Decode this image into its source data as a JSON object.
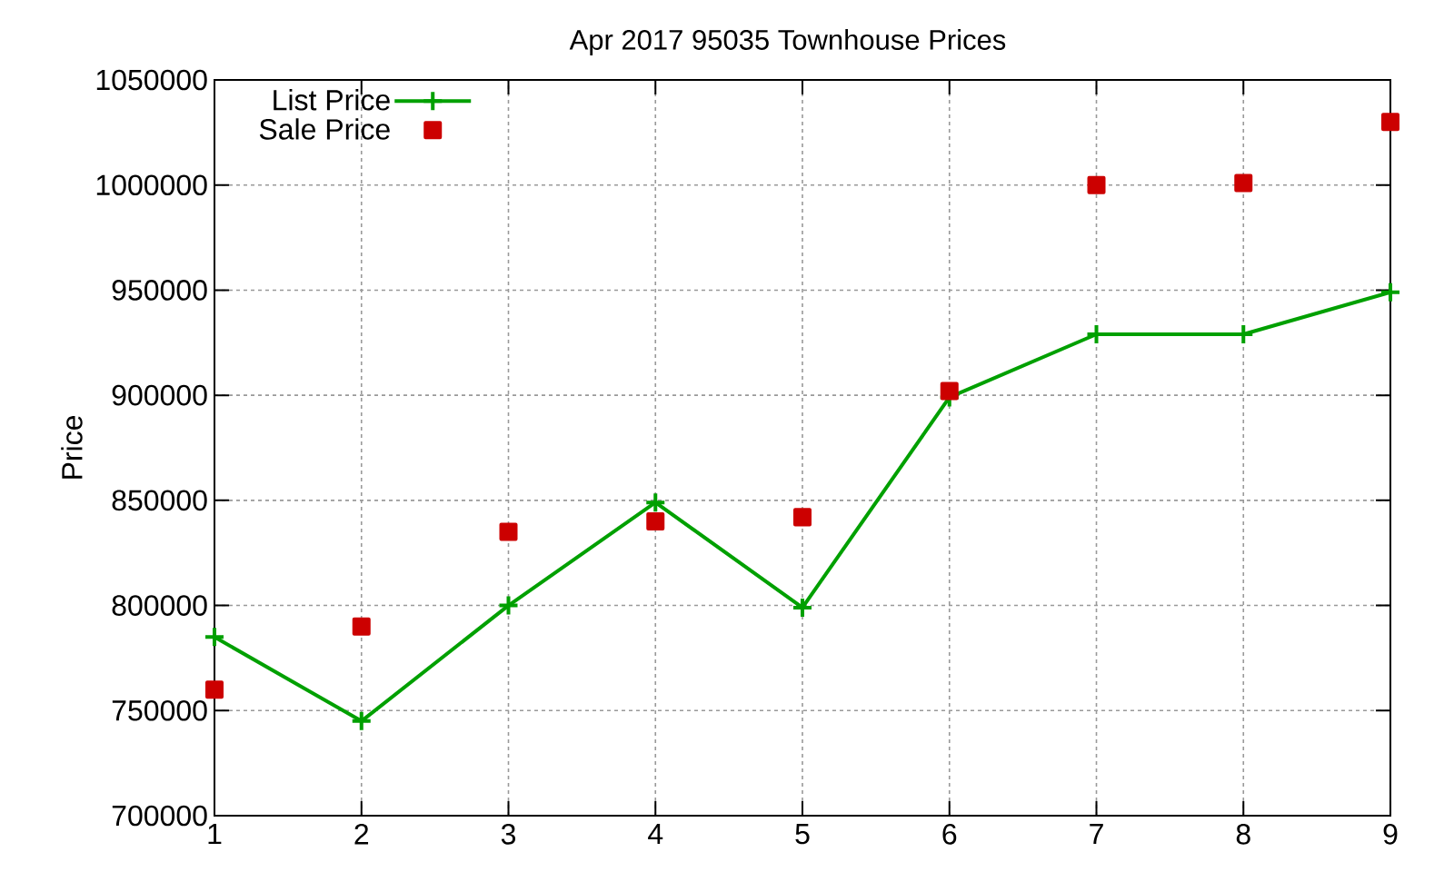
{
  "chart_data": {
    "type": "line",
    "title": "Apr 2017 95035 Townhouse Prices",
    "ylabel": "Price",
    "x": [
      1,
      2,
      3,
      4,
      5,
      6,
      7,
      8,
      9
    ],
    "series": [
      {
        "name": "List Price",
        "color": "#00a000",
        "marker": "cross",
        "line_style": "solid",
        "values": [
          785000,
          745000,
          800000,
          849000,
          799000,
          899000,
          929000,
          929000,
          949000
        ]
      },
      {
        "name": "Sale Price",
        "type": "scatter",
        "color": "#cc0000",
        "marker": "square",
        "values": [
          760000,
          790000,
          835000,
          840000,
          842000,
          902000,
          1000000,
          1001000,
          1030000
        ]
      }
    ],
    "xlim": [
      1,
      9
    ],
    "xticks": [
      1,
      2,
      3,
      4,
      5,
      6,
      7,
      8,
      9
    ],
    "ylim": [
      700000,
      1050000
    ],
    "yticks": [
      700000,
      750000,
      800000,
      850000,
      900000,
      950000,
      1000000,
      1050000
    ],
    "grid": true,
    "legend": "top left"
  }
}
